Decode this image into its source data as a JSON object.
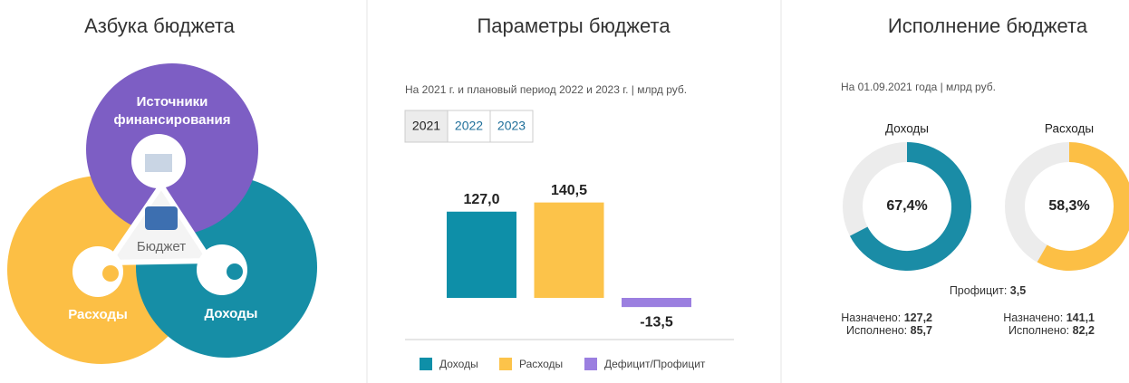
{
  "abc": {
    "title": "Азбука бюджета",
    "sources": [
      "Источники",
      "финансирования"
    ],
    "center": "Бюджет",
    "expenses": "Расходы",
    "revenue": "Доходы"
  },
  "parameters": {
    "title": "Параметры бюджета",
    "subtitle": "На 2021 г. и плановый период 2022 и 2023 г. | млрд руб.",
    "tabs": [
      "2021",
      "2022",
      "2023"
    ]
  },
  "execution": {
    "title": "Исполнение бюджета",
    "subtitle": "На 01.09.2021 года | млрд руб.",
    "surplus_label": "Профицит:",
    "surplus": "3,5"
  },
  "chart_data": [
    {
      "type": "bar",
      "legend": "bottom",
      "series": [
        {
          "name": "Доходы",
          "color": "#0e8fa8",
          "values": [
            127.0
          ],
          "value_labels": [
            "127,0"
          ]
        },
        {
          "name": "Расходы",
          "color": "#fcc34a",
          "values": [
            140.5
          ],
          "value_labels": [
            "140,5"
          ]
        },
        {
          "name": "Дефицит/Профицит",
          "color": "#9b7fe0",
          "values": [
            -13.5
          ],
          "value_labels": [
            "-13,5"
          ]
        }
      ]
    },
    {
      "type": "pie",
      "title": "Доходы",
      "values": [
        67.4
      ],
      "value_labels": [
        "67,4%"
      ],
      "color": "#1a8ca6",
      "stats": [
        {
          "label": "Назначено:",
          "value": "127,2"
        },
        {
          "label": "Исполнено:",
          "value": "85,7"
        }
      ]
    },
    {
      "type": "pie",
      "title": "Расходы",
      "values": [
        58.3
      ],
      "value_labels": [
        "58,3%"
      ],
      "color": "#fcbf45",
      "stats": [
        {
          "label": "Назначено:",
          "value": "141,1"
        },
        {
          "label": "Исполнено:",
          "value": "82,2"
        }
      ]
    }
  ]
}
